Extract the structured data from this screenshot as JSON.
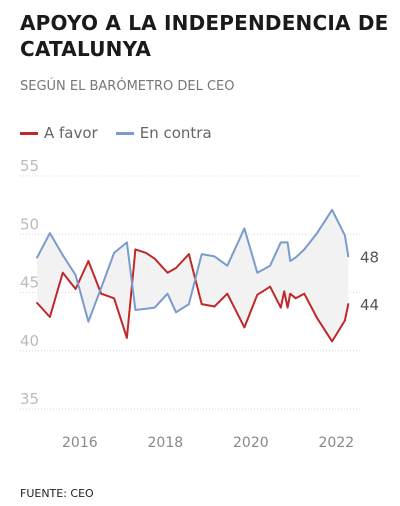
{
  "header": {
    "title": "APOYO A LA INDEPENDENCIA DE CATALUNYA",
    "subtitle": "SEGÚN EL BARÓMETRO DEL CEO"
  },
  "footer": {
    "source": "FUENTE: CEO"
  },
  "chart_data": {
    "type": "line",
    "title": "APOYO A LA INDEPENDENCIA DE CATALUNYA",
    "subtitle": "SEGÚN EL BARÓMETRO DEL CEO",
    "xlabel": "",
    "ylabel": "",
    "xlim": [
      2014.6,
      2022.6
    ],
    "ylim": [
      35,
      55
    ],
    "yticks": [
      "55",
      "50",
      "45",
      "40",
      "35"
    ],
    "xticks": [
      "2016",
      "2018",
      "2020",
      "2022"
    ],
    "grid": true,
    "legend_position": "top-left",
    "band_fill": "#f2f2f2",
    "series": [
      {
        "name": "A favor",
        "color": "#c0282a",
        "end_label": "44",
        "x": [
          2015.0,
          2015.3,
          2015.6,
          2015.9,
          2016.2,
          2016.5,
          2016.8,
          2017.1,
          2017.3,
          2017.55,
          2017.75,
          2018.05,
          2018.25,
          2018.55,
          2018.85,
          2019.15,
          2019.45,
          2019.85,
          2020.15,
          2020.45,
          2020.7,
          2020.78,
          2020.86,
          2020.92,
          2021.05,
          2021.25,
          2021.55,
          2021.9,
          2022.2,
          2022.28
        ],
        "values": [
          44.1,
          42.9,
          46.7,
          45.3,
          47.7,
          44.9,
          44.5,
          41.1,
          48.7,
          48.4,
          47.9,
          46.7,
          47.1,
          48.3,
          44.0,
          43.8,
          44.9,
          42.0,
          44.8,
          45.5,
          43.7,
          45.1,
          43.7,
          44.9,
          44.5,
          44.9,
          42.8,
          40.8,
          42.6,
          44.0
        ]
      },
      {
        "name": "En contra",
        "color": "#7b9bcd",
        "end_label": "48",
        "x": [
          2015.0,
          2015.3,
          2015.6,
          2015.9,
          2016.2,
          2016.5,
          2016.8,
          2017.1,
          2017.3,
          2017.55,
          2017.75,
          2018.05,
          2018.25,
          2018.55,
          2018.85,
          2019.15,
          2019.45,
          2019.85,
          2020.15,
          2020.45,
          2020.7,
          2020.78,
          2020.86,
          2020.92,
          2021.05,
          2021.25,
          2021.55,
          2021.9,
          2022.2,
          2022.28
        ],
        "values": [
          48.0,
          50.1,
          48.2,
          46.5,
          42.5,
          45.4,
          48.4,
          49.3,
          43.5,
          43.6,
          43.7,
          44.9,
          43.3,
          44.0,
          48.3,
          48.1,
          47.3,
          50.5,
          46.7,
          47.3,
          49.3,
          49.3,
          49.3,
          47.7,
          48.0,
          48.7,
          50.1,
          52.1,
          49.9,
          48.1
        ]
      }
    ]
  }
}
